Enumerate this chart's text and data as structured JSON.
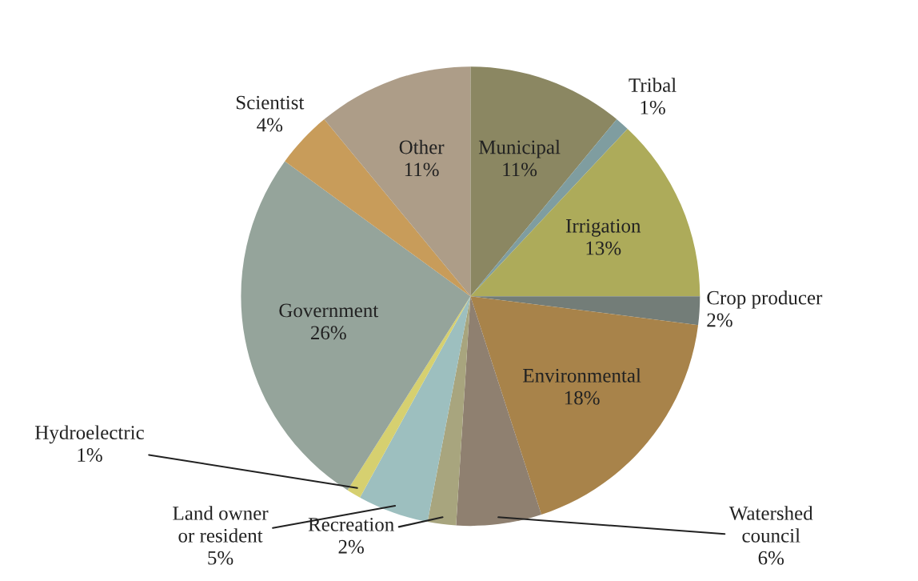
{
  "chart_data": {
    "type": "pie",
    "categories": [
      "Municipal",
      "Tribal",
      "Irrigation",
      "Crop producer",
      "Environmental",
      "Watershed council",
      "Recreation",
      "Land owner or resident",
      "Hydroelectric",
      "Government",
      "Scientist",
      "Other"
    ],
    "values": [
      11,
      1,
      13,
      2,
      18,
      6,
      2,
      5,
      1,
      26,
      4,
      11
    ],
    "colors": [
      "#8b8762",
      "#7f9da0",
      "#adab5a",
      "#737d78",
      "#a8834a",
      "#8f8070",
      "#a8a57e",
      "#9dbfbf",
      "#d6d070",
      "#95a49b",
      "#c89c5a",
      "#ad9d88"
    ],
    "value_labels": [
      "11%",
      "1%",
      "13%",
      "2%",
      "18%",
      "6%",
      "2%",
      "5%",
      "1%",
      "26%",
      "4%",
      "11%"
    ]
  }
}
